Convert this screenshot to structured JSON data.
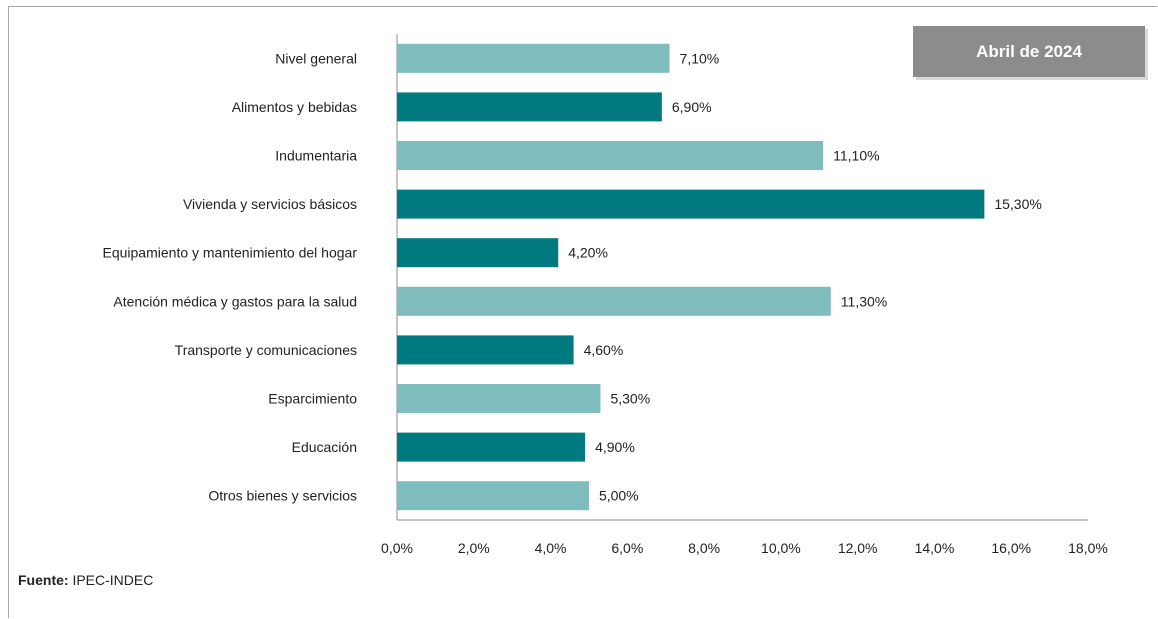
{
  "badge": "Abril de 2024",
  "source": {
    "label": "Fuente:",
    "text": "IPEC-INDEC"
  },
  "colors": {
    "light": "#7fbcbe",
    "dark": "#007a7f"
  },
  "chart_data": {
    "type": "bar",
    "orientation": "horizontal",
    "categories": [
      "Nivel general",
      "Alimentos y bebidas",
      "Indumentaria",
      "Vivienda y servicios básicos",
      "Equipamiento y mantenimiento del hogar",
      "Atención médica y gastos para la salud",
      "Transporte y comunicaciones",
      "Esparcimiento",
      "Educación",
      "Otros bienes y servicios"
    ],
    "values": [
      7.1,
      6.9,
      11.1,
      15.3,
      4.2,
      11.3,
      4.6,
      5.3,
      4.9,
      5.0
    ],
    "value_labels": [
      "7,10%",
      "6,90%",
      "11,10%",
      "15,30%",
      "4,20%",
      "11,30%",
      "4,60%",
      "5,30%",
      "4,90%",
      "5,00%"
    ],
    "bar_color_keys": [
      "light",
      "dark",
      "light",
      "dark",
      "dark",
      "light",
      "dark",
      "light",
      "dark",
      "light"
    ],
    "xlim": [
      0,
      18
    ],
    "xticks": [
      0,
      2,
      4,
      6,
      8,
      10,
      12,
      14,
      16,
      18
    ],
    "xtick_labels": [
      "0,0%",
      "2,0%",
      "4,0%",
      "6,0%",
      "8,0%",
      "10,0%",
      "12,0%",
      "14,0%",
      "16,0%",
      "18,0%"
    ],
    "grid": false,
    "legend": "none"
  }
}
